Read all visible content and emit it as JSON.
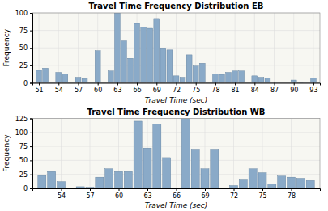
{
  "chart_data": [
    {
      "type": "bar",
      "title": "Travel Time Frequency Distribution EB",
      "xlabel": "Travel Time (sec)",
      "ylabel": "Frequency",
      "x": [
        51,
        52,
        53,
        54,
        55,
        56,
        57,
        58,
        59,
        60,
        61,
        62,
        63,
        64,
        65,
        66,
        67,
        68,
        69,
        70,
        71,
        72,
        73,
        74,
        75,
        76,
        77,
        78,
        79,
        80,
        81,
        82,
        83,
        84,
        85,
        86,
        87,
        88,
        89,
        90,
        91,
        92,
        93
      ],
      "values": [
        18,
        21,
        0,
        15,
        13,
        0,
        8,
        6,
        0,
        46,
        0,
        17,
        100,
        60,
        35,
        85,
        80,
        78,
        92,
        50,
        47,
        10,
        8,
        40,
        24,
        28,
        0,
        13,
        12,
        15,
        17,
        17,
        0,
        10,
        8,
        7,
        0,
        0,
        0,
        4,
        1,
        0,
        7
      ],
      "color": "#8aaac8",
      "xlim": [
        50,
        94
      ],
      "xticks": [
        51,
        54,
        57,
        60,
        63,
        66,
        69,
        72,
        75,
        78,
        81,
        84,
        87,
        90,
        93
      ],
      "ylim": [
        0,
        100
      ],
      "yticks": [
        0,
        25,
        50,
        75,
        100
      ],
      "grid": true
    },
    {
      "type": "bar",
      "title": "Travel Time Frequency Distribution WB",
      "xlabel": "Travel Time (sec)",
      "ylabel": "Frequency",
      "x": [
        52,
        53,
        54,
        55,
        56,
        57,
        58,
        59,
        60,
        61,
        62,
        63,
        64,
        65,
        66,
        67,
        68,
        69,
        70,
        71,
        72,
        73,
        74,
        75,
        76,
        77,
        78,
        79,
        80
      ],
      "values": [
        23,
        30,
        12,
        0,
        3,
        2,
        20,
        35,
        30,
        30,
        120,
        72,
        115,
        55,
        0,
        125,
        70,
        35,
        70,
        0,
        5,
        15,
        35,
        28,
        8,
        22,
        20,
        18,
        14
      ],
      "color": "#8aaac8",
      "xlim": [
        51,
        81
      ],
      "xticks": [
        54,
        57,
        60,
        63,
        66,
        69,
        72,
        75,
        78
      ],
      "ylim": [
        0,
        125
      ],
      "yticks": [
        0,
        25,
        50,
        75,
        100,
        125
      ],
      "grid": true
    }
  ]
}
